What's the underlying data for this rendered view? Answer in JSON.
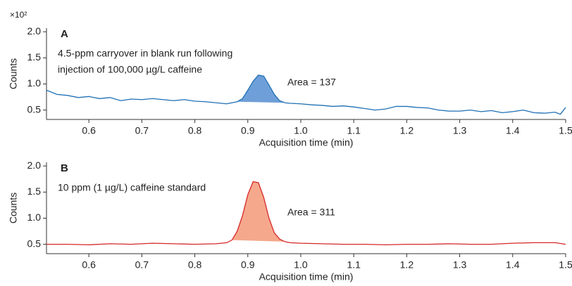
{
  "chart_data": [
    {
      "type": "line",
      "panel_label": "A",
      "y_multiplier": "×10²",
      "annotation": [
        "4.5-ppm carryover in blank run following",
        "injection of 100,000 µg/L caffeine"
      ],
      "area_label": "Area = 137",
      "ylabel": "Counts",
      "xlabel": "Acquisition time (min)",
      "x": [
        0.52,
        0.54,
        0.56,
        0.58,
        0.6,
        0.62,
        0.64,
        0.66,
        0.68,
        0.7,
        0.72,
        0.74,
        0.76,
        0.78,
        0.8,
        0.82,
        0.84,
        0.86,
        0.88,
        0.89,
        0.9,
        0.91,
        0.92,
        0.93,
        0.94,
        0.95,
        0.96,
        0.97,
        0.98,
        1.0,
        1.02,
        1.04,
        1.06,
        1.08,
        1.1,
        1.12,
        1.14,
        1.16,
        1.18,
        1.2,
        1.22,
        1.24,
        1.26,
        1.28,
        1.3,
        1.32,
        1.34,
        1.36,
        1.38,
        1.4,
        1.42,
        1.44,
        1.46,
        1.48,
        1.49,
        1.5
      ],
      "series": [
        {
          "color": "#1f6fb5",
          "fill_color": "#6f9fd8",
          "values": [
            0.88,
            0.8,
            0.78,
            0.74,
            0.76,
            0.72,
            0.74,
            0.68,
            0.71,
            0.7,
            0.72,
            0.7,
            0.68,
            0.7,
            0.67,
            0.66,
            0.64,
            0.62,
            0.66,
            0.72,
            0.88,
            1.05,
            1.17,
            1.15,
            0.98,
            0.8,
            0.68,
            0.64,
            0.63,
            0.62,
            0.6,
            0.59,
            0.57,
            0.58,
            0.56,
            0.53,
            0.5,
            0.52,
            0.57,
            0.57,
            0.55,
            0.54,
            0.5,
            0.48,
            0.48,
            0.5,
            0.47,
            0.49,
            0.45,
            0.47,
            0.5,
            0.45,
            0.44,
            0.46,
            0.42,
            0.55
          ]
        }
      ],
      "fill_xlim": [
        0.88,
        0.97
      ],
      "xlim": [
        0.52,
        1.5
      ],
      "ylim": [
        0.32,
        2.07
      ],
      "xticks": [
        0.6,
        0.7,
        0.8,
        0.9,
        {
          "value": 1,
          "label": "1.0"
        },
        1.1,
        1.2,
        1.3,
        1.4,
        1.5
      ],
      "yticks": [
        0.5,
        {
          "value": 1,
          "label": "1.0"
        },
        1.5,
        {
          "value": 2,
          "label": "2.0"
        }
      ]
    },
    {
      "type": "line",
      "panel_label": "B",
      "annotation": [
        "10 ppm (1 µg/L) caffeine standard"
      ],
      "area_label": "Area = 311",
      "ylabel": "Counts",
      "xlabel": "Acquisition time (min)",
      "x": [
        0.52,
        0.56,
        0.6,
        0.64,
        0.68,
        0.72,
        0.76,
        0.8,
        0.84,
        0.86,
        0.87,
        0.88,
        0.89,
        0.9,
        0.91,
        0.92,
        0.93,
        0.94,
        0.95,
        0.96,
        0.97,
        0.98,
        1.0,
        1.04,
        1.08,
        1.12,
        1.16,
        1.2,
        1.24,
        1.28,
        1.32,
        1.36,
        1.4,
        1.44,
        1.48,
        1.5
      ],
      "series": [
        {
          "color": "#d62728",
          "fill_color": "#f5a88c",
          "values": [
            0.5,
            0.5,
            0.49,
            0.51,
            0.5,
            0.52,
            0.51,
            0.5,
            0.51,
            0.53,
            0.58,
            0.75,
            1.05,
            1.45,
            1.7,
            1.68,
            1.4,
            1.0,
            0.72,
            0.6,
            0.55,
            0.53,
            0.52,
            0.51,
            0.5,
            0.5,
            0.49,
            0.5,
            0.5,
            0.51,
            0.5,
            0.5,
            0.52,
            0.53,
            0.53,
            0.5
          ]
        }
      ],
      "fill_xlim": [
        0.87,
        0.97
      ],
      "xlim": [
        0.52,
        1.5
      ],
      "ylim": [
        0.32,
        2.07
      ],
      "xticks": [
        0.6,
        0.7,
        0.8,
        0.9,
        {
          "value": 1,
          "label": "1.0"
        },
        1.1,
        1.2,
        1.3,
        1.4,
        1.5
      ],
      "yticks": [
        0.5,
        {
          "value": 1,
          "label": "1.0"
        },
        1.5,
        {
          "value": 2,
          "label": "2.0"
        }
      ]
    }
  ]
}
